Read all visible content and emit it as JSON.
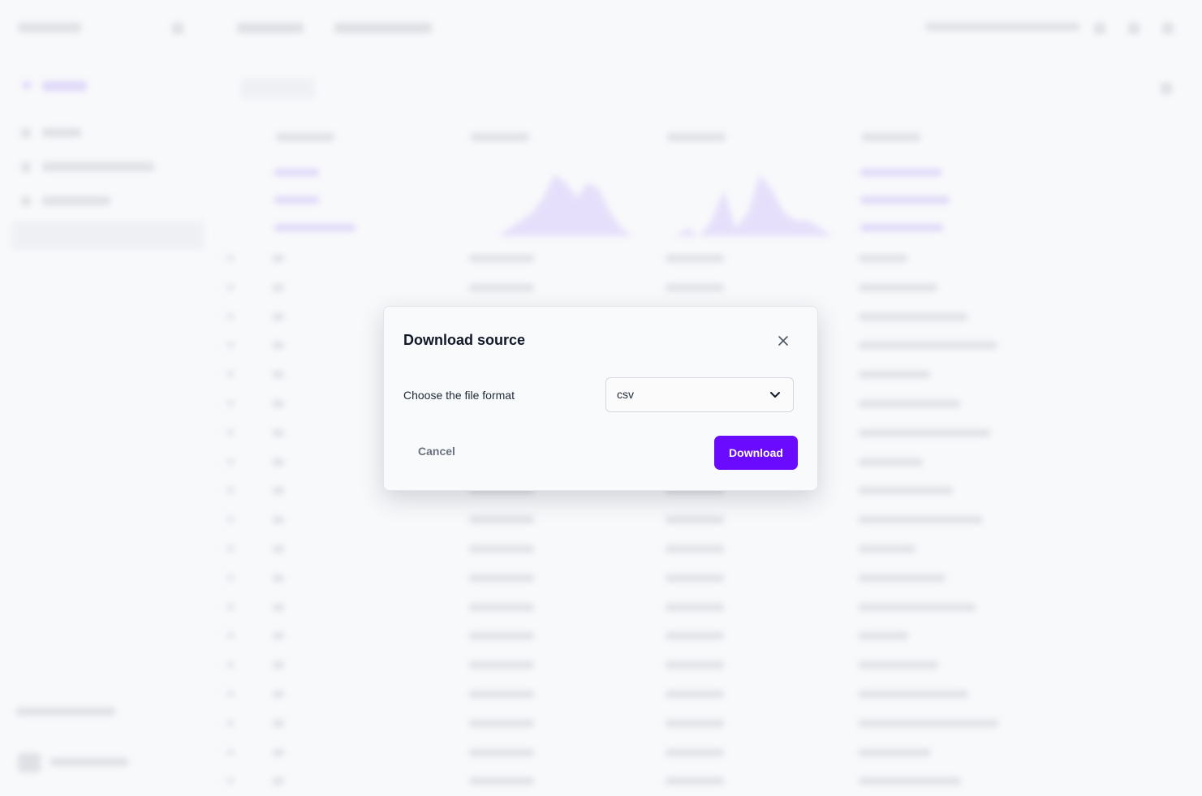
{
  "modal": {
    "title": "Download source",
    "format_label": "Choose the file format",
    "format_value": "csv",
    "cancel_label": "Cancel",
    "download_label": "Download",
    "close_icon": "close-icon",
    "chevron_icon": "chevron-down-icon"
  },
  "colors": {
    "accent": "#6a0bff",
    "backdrop": "#f8f9fb"
  }
}
